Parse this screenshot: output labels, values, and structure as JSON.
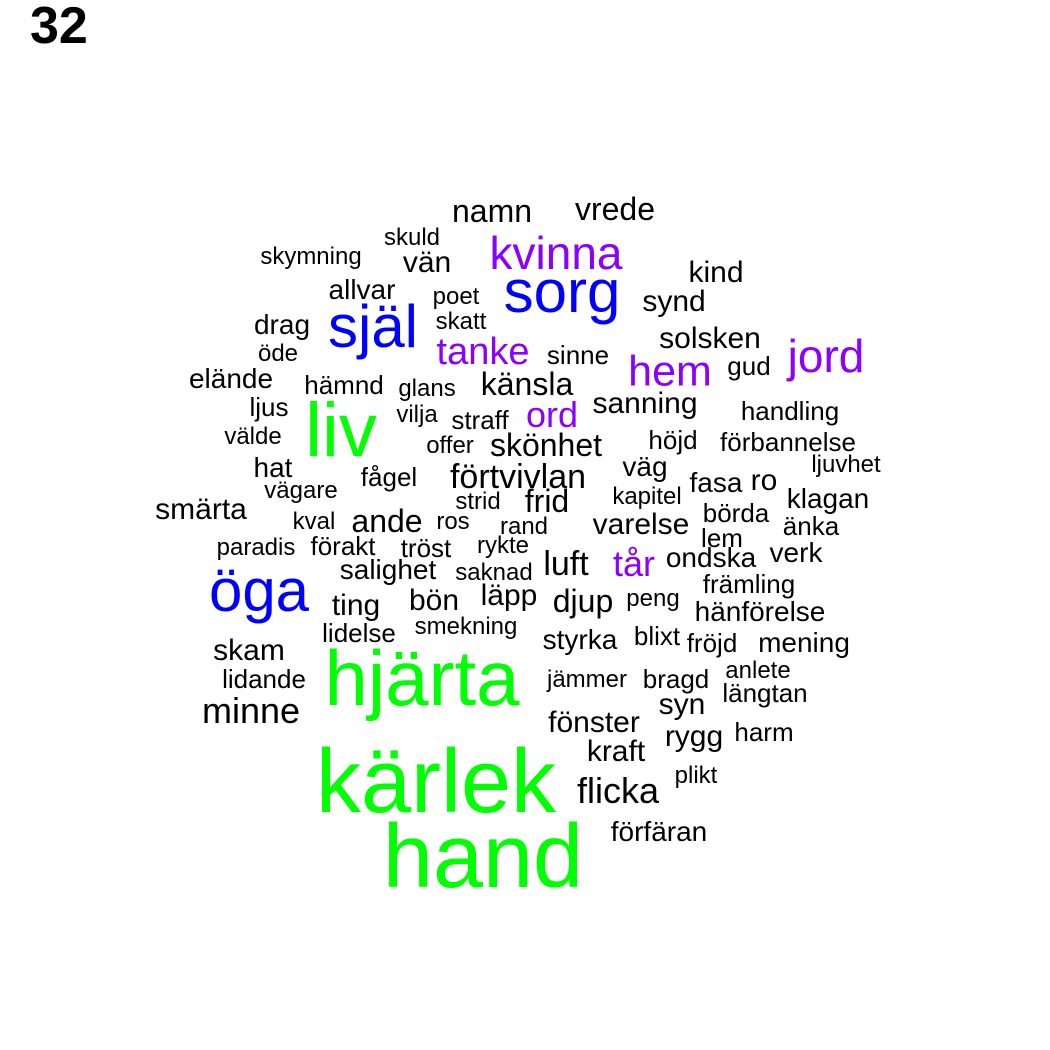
{
  "panel_number": "32",
  "colors": {
    "tier1": "#00ff00",
    "tier2": "#0000ff",
    "tier3": "#8b00ff",
    "tier4": "#000000"
  },
  "words": [
    {
      "text": "hand",
      "tier": 1
    },
    {
      "text": "kärlek",
      "tier": 1
    },
    {
      "text": "hjärta",
      "tier": 1
    },
    {
      "text": "liv",
      "tier": 1
    },
    {
      "text": "öga",
      "tier": 2
    },
    {
      "text": "själ",
      "tier": 2
    },
    {
      "text": "sorg",
      "tier": 2
    },
    {
      "text": "kvinna",
      "tier": 3
    },
    {
      "text": "jord",
      "tier": 3
    },
    {
      "text": "hem",
      "tier": 3
    },
    {
      "text": "tanke",
      "tier": 3
    },
    {
      "text": "ord",
      "tier": 3
    },
    {
      "text": "tår",
      "tier": 3
    },
    {
      "text": "namn",
      "tier": 4
    },
    {
      "text": "vrede",
      "tier": 4
    },
    {
      "text": "skuld",
      "tier": 4
    },
    {
      "text": "skymning",
      "tier": 4
    },
    {
      "text": "vän",
      "tier": 4
    },
    {
      "text": "kind",
      "tier": 4
    },
    {
      "text": "allvar",
      "tier": 4
    },
    {
      "text": "poet",
      "tier": 4
    },
    {
      "text": "synd",
      "tier": 4
    },
    {
      "text": "drag",
      "tier": 4
    },
    {
      "text": "skatt",
      "tier": 4
    },
    {
      "text": "solsken",
      "tier": 4
    },
    {
      "text": "öde",
      "tier": 4
    },
    {
      "text": "sinne",
      "tier": 4
    },
    {
      "text": "gud",
      "tier": 4
    },
    {
      "text": "elände",
      "tier": 4
    },
    {
      "text": "hämnd",
      "tier": 4
    },
    {
      "text": "glans",
      "tier": 4
    },
    {
      "text": "känsla",
      "tier": 4
    },
    {
      "text": "ljus",
      "tier": 4
    },
    {
      "text": "vilja",
      "tier": 4
    },
    {
      "text": "straff",
      "tier": 4
    },
    {
      "text": "sanning",
      "tier": 4
    },
    {
      "text": "handling",
      "tier": 4
    },
    {
      "text": "välde",
      "tier": 4
    },
    {
      "text": "offer",
      "tier": 4
    },
    {
      "text": "skönhet",
      "tier": 4
    },
    {
      "text": "höjd",
      "tier": 4
    },
    {
      "text": "förbannelse",
      "tier": 4
    },
    {
      "text": "hat",
      "tier": 4
    },
    {
      "text": "fågel",
      "tier": 4
    },
    {
      "text": "förtvivlan",
      "tier": 4
    },
    {
      "text": "väg",
      "tier": 4
    },
    {
      "text": "ljuvhet",
      "tier": 4
    },
    {
      "text": "vägare",
      "tier": 4
    },
    {
      "text": "fasa",
      "tier": 4
    },
    {
      "text": "ro",
      "tier": 4
    },
    {
      "text": "smärta",
      "tier": 4
    },
    {
      "text": "strid",
      "tier": 4
    },
    {
      "text": "frid",
      "tier": 4
    },
    {
      "text": "kapitel",
      "tier": 4
    },
    {
      "text": "klagan",
      "tier": 4
    },
    {
      "text": "kval",
      "tier": 4
    },
    {
      "text": "ande",
      "tier": 4
    },
    {
      "text": "ros",
      "tier": 4
    },
    {
      "text": "rand",
      "tier": 4
    },
    {
      "text": "varelse",
      "tier": 4
    },
    {
      "text": "börda",
      "tier": 4
    },
    {
      "text": "änka",
      "tier": 4
    },
    {
      "text": "lem",
      "tier": 4
    },
    {
      "text": "paradis",
      "tier": 4
    },
    {
      "text": "förakt",
      "tier": 4
    },
    {
      "text": "tröst",
      "tier": 4
    },
    {
      "text": "rykte",
      "tier": 4
    },
    {
      "text": "verk",
      "tier": 4
    },
    {
      "text": "salighet",
      "tier": 4
    },
    {
      "text": "saknad",
      "tier": 4
    },
    {
      "text": "luft",
      "tier": 4
    },
    {
      "text": "ondska",
      "tier": 4
    },
    {
      "text": "främling",
      "tier": 4
    },
    {
      "text": "ting",
      "tier": 4
    },
    {
      "text": "bön",
      "tier": 4
    },
    {
      "text": "läpp",
      "tier": 4
    },
    {
      "text": "djup",
      "tier": 4
    },
    {
      "text": "peng",
      "tier": 4
    },
    {
      "text": "hänförelse",
      "tier": 4
    },
    {
      "text": "lidelse",
      "tier": 4
    },
    {
      "text": "smekning",
      "tier": 4
    },
    {
      "text": "skam",
      "tier": 4
    },
    {
      "text": "styrka",
      "tier": 4
    },
    {
      "text": "blixt",
      "tier": 4
    },
    {
      "text": "fröjd",
      "tier": 4
    },
    {
      "text": "mening",
      "tier": 4
    },
    {
      "text": "lidande",
      "tier": 4
    },
    {
      "text": "jämmer",
      "tier": 4
    },
    {
      "text": "bragd",
      "tier": 4
    },
    {
      "text": "anlete",
      "tier": 4
    },
    {
      "text": "längtan",
      "tier": 4
    },
    {
      "text": "minne",
      "tier": 4
    },
    {
      "text": "syn",
      "tier": 4
    },
    {
      "text": "fönster",
      "tier": 4
    },
    {
      "text": "rygg",
      "tier": 4
    },
    {
      "text": "harm",
      "tier": 4
    },
    {
      "text": "kraft",
      "tier": 4
    },
    {
      "text": "plikt",
      "tier": 4
    },
    {
      "text": "flicka",
      "tier": 4
    },
    {
      "text": "förfäran",
      "tier": 4
    }
  ]
}
